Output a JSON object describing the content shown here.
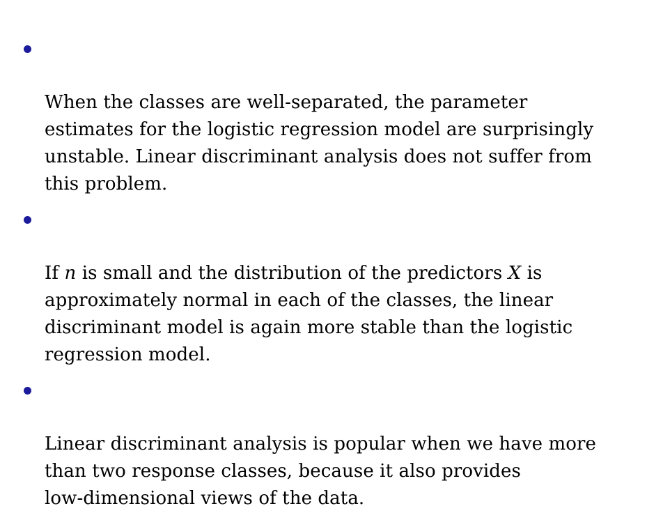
{
  "style": {
    "bullet_color": "#1b1b9c",
    "text_color": "#000000"
  },
  "bullets": [
    {
      "text": "When the classes are well-separated, the parameter\nestimates for the logistic regression model are surprisingly\nunstable. Linear discriminant analysis does not suffer from\nthis problem."
    },
    {
      "pre": "If ",
      "var_n": "n",
      "mid": " is small and the distribution of the predictors ",
      "var_x": "X",
      "post": " is\napproximately normal in each of the classes, the linear\ndiscriminant model is again more stable than the logistic\nregression model."
    },
    {
      "text": "Linear discriminant analysis is popular when we have more\nthan two response classes, because it also provides\nlow-dimensional views of the data."
    }
  ]
}
